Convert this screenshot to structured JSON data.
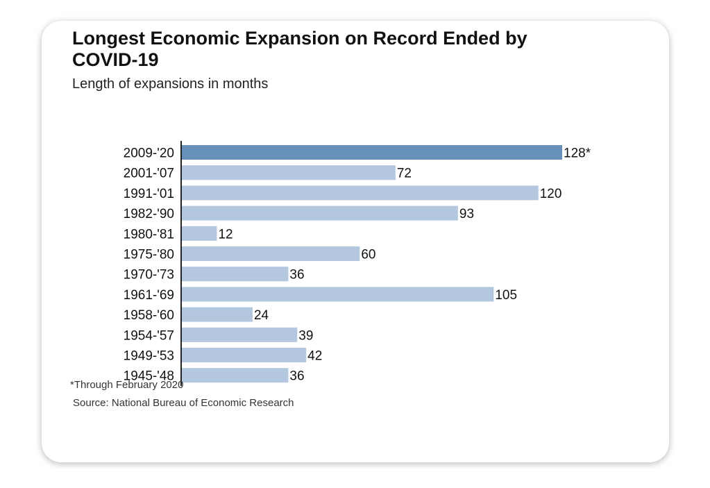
{
  "chart_data": {
    "type": "bar",
    "orientation": "horizontal",
    "title": "Longest Economic Expansion on Record Ended by COVID-19",
    "subtitle": "Length of expansions in months",
    "categories": [
      "2009-'20",
      "2001-'07",
      "1991-'01",
      "1982-'90",
      "1980-'81",
      "1975-'80",
      "1970-'73",
      "1961-'69",
      "1958-'60",
      "1954-'57",
      "1949-'53",
      "1945-'48"
    ],
    "values": [
      128,
      72,
      120,
      93,
      12,
      60,
      36,
      105,
      24,
      39,
      42,
      36
    ],
    "value_labels": [
      "128*",
      "72",
      "120",
      "93",
      "12",
      "60",
      "36",
      "105",
      "24",
      "39",
      "42",
      "36"
    ],
    "highlight_index": 0,
    "colors": {
      "highlight": "#668fba",
      "default": "#b3c7de",
      "axis": "#222222"
    },
    "xlim": [
      0,
      128
    ],
    "grid": false,
    "legend": "none"
  },
  "footnote": "*Through February 2020",
  "source": "Source: National Bureau of Economic Research"
}
